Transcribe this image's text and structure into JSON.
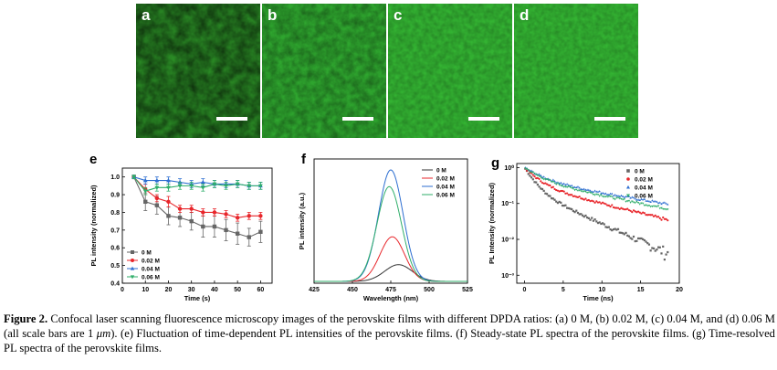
{
  "micrographs": [
    {
      "letter": "a",
      "color": "#2a8a25"
    },
    {
      "letter": "b",
      "color": "#2ea42e"
    },
    {
      "letter": "c",
      "color": "#33b232"
    },
    {
      "letter": "d",
      "color": "#33b232"
    }
  ],
  "caption": {
    "label": "Figure 2.",
    "text_before_unit": " Confocal laser scanning fluorescence microscopy images of the perovskite films with different DPDA ratios: (a) 0 M, (b) 0.02 M, (c) 0.04 M, and (d) 0.06 M (all scale bars are 1 ",
    "unit": "μm",
    "text_after_unit": "). (e) Fluctuation of time-dependent PL intensities of the perovskite films. (f) Steady-state PL spectra of the perovskite films. (g) Time-resolved PL spectra of the perovskite films."
  },
  "chart_data": [
    {
      "panel": "e",
      "type": "line",
      "xlabel": "Time (s)",
      "ylabel": "PL intensity (normalized)",
      "xlim": [
        0,
        65
      ],
      "ylim": [
        0.4,
        1.05
      ],
      "xticks": [
        0,
        10,
        20,
        30,
        40,
        50,
        60
      ],
      "yticks": [
        0.4,
        0.5,
        0.6,
        0.7,
        0.8,
        0.9,
        1.0
      ],
      "legend_position": "bottom-left",
      "x": [
        5,
        10,
        15,
        20,
        25,
        30,
        35,
        40,
        45,
        50,
        55,
        60
      ],
      "series": [
        {
          "name": "0 M",
          "color": "#666666",
          "marker": "square",
          "values": [
            1.0,
            0.86,
            0.84,
            0.78,
            0.77,
            0.75,
            0.72,
            0.72,
            0.7,
            0.68,
            0.66,
            0.69
          ],
          "error": [
            0.01,
            0.05,
            0.05,
            0.05,
            0.05,
            0.05,
            0.06,
            0.06,
            0.06,
            0.06,
            0.05,
            0.06
          ]
        },
        {
          "name": "0.02 M",
          "color": "#e8262b",
          "marker": "circle",
          "values": [
            1.0,
            0.93,
            0.88,
            0.86,
            0.82,
            0.82,
            0.8,
            0.8,
            0.79,
            0.77,
            0.78,
            0.78
          ],
          "error": [
            0.01,
            0.03,
            0.02,
            0.03,
            0.02,
            0.02,
            0.02,
            0.02,
            0.02,
            0.02,
            0.02,
            0.02
          ]
        },
        {
          "name": "0.04 M",
          "color": "#2d6ed1",
          "marker": "triangle-up",
          "values": [
            1.0,
            0.98,
            0.98,
            0.98,
            0.97,
            0.96,
            0.97,
            0.96,
            0.96,
            0.96,
            0.95,
            0.95
          ],
          "error": [
            0.01,
            0.02,
            0.02,
            0.02,
            0.02,
            0.02,
            0.02,
            0.02,
            0.02,
            0.02,
            0.02,
            0.02
          ]
        },
        {
          "name": "0.06 M",
          "color": "#2fae6a",
          "marker": "triangle-down",
          "values": [
            1.0,
            0.92,
            0.94,
            0.94,
            0.95,
            0.95,
            0.94,
            0.96,
            0.95,
            0.96,
            0.95,
            0.95
          ],
          "error": [
            0.01,
            0.02,
            0.02,
            0.02,
            0.02,
            0.02,
            0.02,
            0.02,
            0.02,
            0.02,
            0.02,
            0.02
          ]
        }
      ]
    },
    {
      "panel": "f",
      "type": "line",
      "xlabel": "Wavelength (nm)",
      "ylabel": "PL intensity (a.u.)",
      "xlim": [
        425,
        525
      ],
      "xticks": [
        425,
        450,
        475,
        500,
        525
      ],
      "yticks": [],
      "legend_position": "top-right",
      "series": [
        {
          "name": "0 M",
          "color": "#333333",
          "peak": 480,
          "amplitude": 0.15,
          "width": 9
        },
        {
          "name": "0.02 M",
          "color": "#e8262b",
          "peak": 476,
          "amplitude": 0.4,
          "width": 8
        },
        {
          "name": "0.04 M",
          "color": "#2d6ed1",
          "peak": 475,
          "amplitude": 1.0,
          "width": 8
        },
        {
          "name": "0.06 M",
          "color": "#2fae6a",
          "peak": 474,
          "amplitude": 0.85,
          "width": 8
        }
      ]
    },
    {
      "panel": "g",
      "type": "scatter",
      "xlabel": "Time (ns)",
      "ylabel": "PL Intensity (normalized)",
      "xlim": [
        -1,
        20
      ],
      "ylim": [
        0.0006,
        1.3
      ],
      "yscale": "log",
      "xticks": [
        0,
        5,
        10,
        15,
        20
      ],
      "yticks": [
        {
          "value": 0.001,
          "label": "10⁻³"
        },
        {
          "value": 0.01,
          "label": "10⁻²"
        },
        {
          "value": 0.1,
          "label": "10⁻¹"
        },
        {
          "value": 1,
          "label": "10⁰"
        }
      ],
      "legend_position": "top-right",
      "series": [
        {
          "name": "0 M",
          "color": "#666666",
          "marker": "square",
          "decay_a1": 0.75,
          "tau1": 1.1,
          "decay_a2": 0.25,
          "tau2": 4.5
        },
        {
          "name": "0.02 M",
          "color": "#e8262b",
          "marker": "circle",
          "decay_a1": 0.65,
          "tau1": 1.5,
          "decay_a2": 0.35,
          "tau2": 8
        },
        {
          "name": "0.04 M",
          "color": "#2d6ed1",
          "marker": "triangle-up",
          "decay_a1": 0.55,
          "tau1": 2.2,
          "decay_a2": 0.45,
          "tau2": 12
        },
        {
          "name": "0.06 M",
          "color": "#2fae6a",
          "marker": "triangle-down",
          "decay_a1": 0.55,
          "tau1": 1.9,
          "decay_a2": 0.45,
          "tau2": 10
        }
      ]
    }
  ]
}
